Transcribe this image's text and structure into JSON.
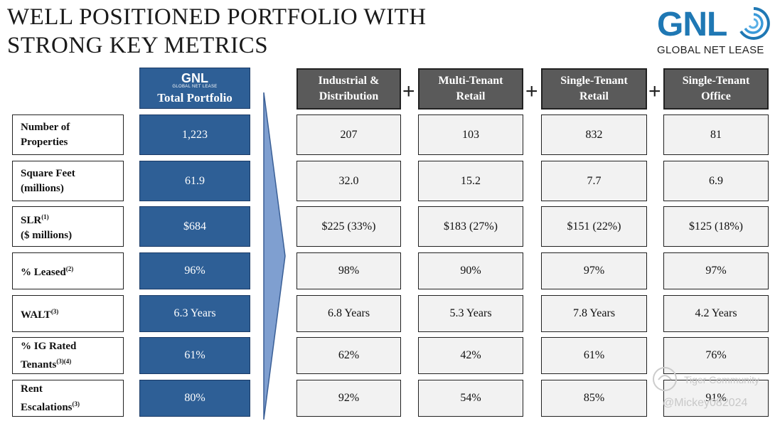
{
  "title": {
    "line1": "WELL POSITIONED PORTFOLIO WITH",
    "line2": "STRONG KEY METRICS"
  },
  "logo": {
    "mark": "GNL",
    "sub": "GLOBAL NET LEASE",
    "icon": "gnl-swirl-icon"
  },
  "total_portfolio": {
    "logo_mark": "GNL",
    "logo_sub": "GLOBAL NET LEASE",
    "label": "Total Portfolio",
    "values": [
      "1,223",
      "61.9",
      "$684",
      "96%",
      "6.3 Years",
      "61%",
      "80%"
    ]
  },
  "rows": [
    {
      "line1": "Number of",
      "line2": "Properties",
      "sup": ""
    },
    {
      "line1": "Square Feet",
      "line2": "(millions)",
      "sup": ""
    },
    {
      "line1": "SLR",
      "sup1": "(1)",
      "line2": "($ millions)"
    },
    {
      "line1": "% Leased",
      "sup1": "(2)"
    },
    {
      "line1": "WALT",
      "sup1": "(3)"
    },
    {
      "line1": "% IG Rated",
      "line2": "Tenants",
      "sup2": "(3)(4)"
    },
    {
      "line1": "Rent",
      "line2": "Escalations",
      "sup2": "(3)"
    }
  ],
  "segments": [
    {
      "line1": "Industrial &",
      "line2": "Distribution",
      "values": [
        "207",
        "32.0",
        "$225 (33%)",
        "98%",
        "6.8 Years",
        "62%",
        "92%"
      ]
    },
    {
      "line1": "Multi-Tenant",
      "line2": "Retail",
      "values": [
        "103",
        "15.2",
        "$183 (27%)",
        "90%",
        "5.3 Years",
        "42%",
        "54%"
      ]
    },
    {
      "line1": "Single-Tenant",
      "line2": "Retail",
      "values": [
        "832",
        "7.7",
        "$151 (22%)",
        "97%",
        "7.8 Years",
        "61%",
        "85%"
      ]
    },
    {
      "line1": "Single-Tenant",
      "line2": "Office",
      "values": [
        "81",
        "6.9",
        "$125 (18%)",
        "97%",
        "4.2 Years",
        "76%",
        "91%"
      ]
    }
  ],
  "plus_sign": "+",
  "watermark": {
    "line1": "Tiger Community",
    "line2": "@Mickey082024"
  },
  "colors": {
    "accent": "#2e5f96",
    "header_gray": "#5a5a5a",
    "cell_bg": "#f2f2f2",
    "logo_blue": "#1f78b4"
  }
}
